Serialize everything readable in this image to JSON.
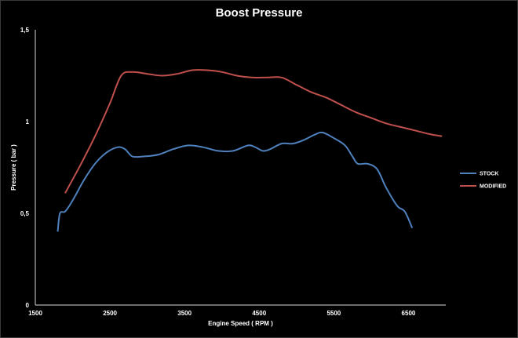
{
  "chart_data": {
    "type": "line",
    "title": "Boost Pressure",
    "xlabel": "Engine Speed ( RPM )",
    "ylabel": "Pressure ( bar )",
    "xlim": [
      1500,
      7000
    ],
    "ylim": [
      0,
      1.5
    ],
    "x_ticks": [
      1500,
      2500,
      3500,
      4500,
      5500,
      6500
    ],
    "x_tick_labels": [
      "1500",
      "2500",
      "3500",
      "4500",
      "5500",
      "6500"
    ],
    "y_ticks": [
      0,
      0.5,
      1,
      1.5
    ],
    "y_tick_labels": [
      "0",
      "0,5",
      "1",
      "1,5"
    ],
    "grid": false,
    "legend_position": "right",
    "series": [
      {
        "name": "STOCK",
        "color": "#4f81bd",
        "points": [
          [
            1800,
            0.4
          ],
          [
            1830,
            0.5
          ],
          [
            1900,
            0.51
          ],
          [
            2000,
            0.57
          ],
          [
            2150,
            0.68
          ],
          [
            2300,
            0.77
          ],
          [
            2450,
            0.83
          ],
          [
            2600,
            0.86
          ],
          [
            2700,
            0.85
          ],
          [
            2800,
            0.81
          ],
          [
            2950,
            0.81
          ],
          [
            3150,
            0.82
          ],
          [
            3350,
            0.85
          ],
          [
            3550,
            0.87
          ],
          [
            3750,
            0.86
          ],
          [
            3950,
            0.84
          ],
          [
            4150,
            0.84
          ],
          [
            4350,
            0.87
          ],
          [
            4450,
            0.86
          ],
          [
            4550,
            0.84
          ],
          [
            4650,
            0.85
          ],
          [
            4800,
            0.88
          ],
          [
            4950,
            0.88
          ],
          [
            5100,
            0.9
          ],
          [
            5250,
            0.93
          ],
          [
            5350,
            0.94
          ],
          [
            5500,
            0.91
          ],
          [
            5650,
            0.87
          ],
          [
            5750,
            0.81
          ],
          [
            5820,
            0.77
          ],
          [
            5950,
            0.77
          ],
          [
            6080,
            0.74
          ],
          [
            6200,
            0.64
          ],
          [
            6350,
            0.54
          ],
          [
            6450,
            0.51
          ],
          [
            6550,
            0.42
          ]
        ]
      },
      {
        "name": "MODIFIED",
        "color": "#c0504d",
        "points": [
          [
            1900,
            0.61
          ],
          [
            2100,
            0.76
          ],
          [
            2300,
            0.92
          ],
          [
            2500,
            1.1
          ],
          [
            2650,
            1.25
          ],
          [
            2800,
            1.27
          ],
          [
            3000,
            1.26
          ],
          [
            3200,
            1.25
          ],
          [
            3400,
            1.26
          ],
          [
            3600,
            1.28
          ],
          [
            3800,
            1.28
          ],
          [
            4000,
            1.27
          ],
          [
            4200,
            1.25
          ],
          [
            4400,
            1.24
          ],
          [
            4600,
            1.24
          ],
          [
            4800,
            1.24
          ],
          [
            5000,
            1.2
          ],
          [
            5200,
            1.16
          ],
          [
            5400,
            1.13
          ],
          [
            5600,
            1.09
          ],
          [
            5800,
            1.05
          ],
          [
            6000,
            1.02
          ],
          [
            6200,
            0.99
          ],
          [
            6400,
            0.97
          ],
          [
            6600,
            0.95
          ],
          [
            6800,
            0.93
          ],
          [
            6950,
            0.92
          ]
        ]
      }
    ]
  }
}
